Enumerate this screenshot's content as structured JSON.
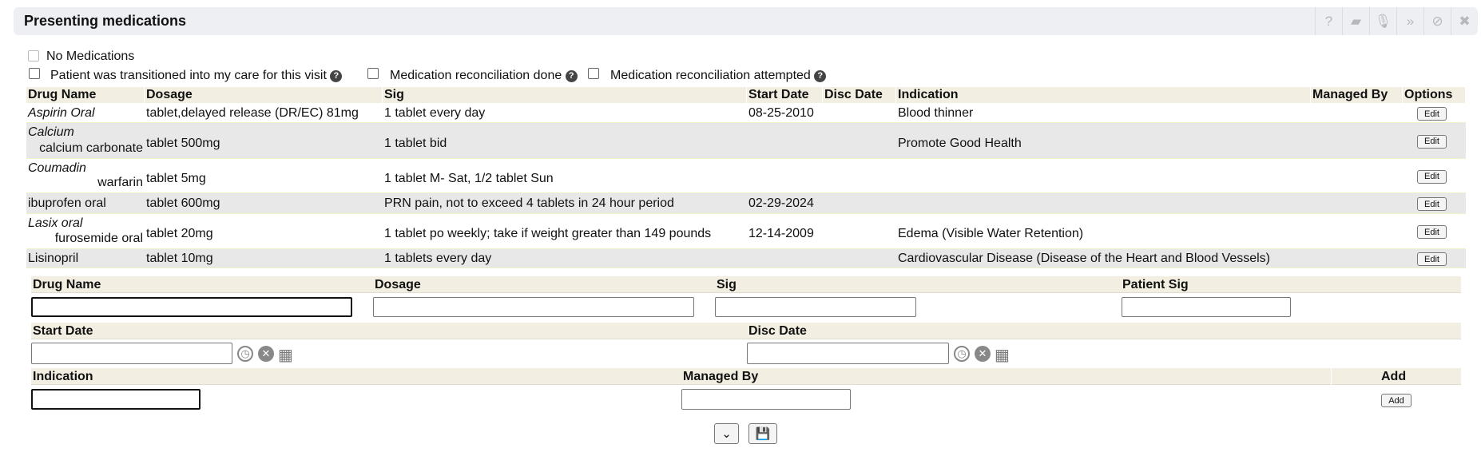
{
  "header": {
    "title": "Presenting medications",
    "tools": [
      {
        "icon": "help-icon",
        "glyph": "?"
      },
      {
        "icon": "book-icon",
        "glyph": "▰"
      },
      {
        "icon": "microphone-icon",
        "glyph": "🎙"
      },
      {
        "icon": "double-chevron-down-icon",
        "glyph": "»"
      },
      {
        "icon": "ban-icon",
        "glyph": "⊘"
      },
      {
        "icon": "close-icon",
        "glyph": "✖"
      }
    ]
  },
  "options": {
    "no_meds": "No Medications",
    "transitioned": "Patient was transitioned into my care for this visit",
    "recon_done": "Medication reconciliation done",
    "recon_attempted": "Medication reconciliation attempted"
  },
  "table": {
    "headers": [
      "Drug Name",
      "Dosage",
      "Sig",
      "Start Date",
      "Disc Date",
      "Indication",
      "Managed By",
      "Options"
    ],
    "rows": [
      {
        "drug": "Aspirin Oral",
        "generic": "",
        "dosage": "tablet,delayed release (DR/EC) 81mg",
        "sig": "1 tablet every day",
        "start": "08-25-2010",
        "disc": "",
        "indication": "Blood thinner",
        "managed": "",
        "edit": "Edit"
      },
      {
        "drug": "Calcium",
        "generic": "calcium carbonate",
        "dosage": "tablet 500mg",
        "sig": "1 tablet bid",
        "start": "",
        "disc": "",
        "indication": "Promote Good Health",
        "managed": "",
        "edit": "Edit"
      },
      {
        "drug": "Coumadin",
        "generic": "warfarin",
        "dosage": "tablet 5mg",
        "sig": "1 tablet M- Sat, 1/2 tablet Sun",
        "start": "",
        "disc": "",
        "indication": "",
        "managed": "",
        "edit": "Edit"
      },
      {
        "drug": "ibuprofen oral",
        "generic": "",
        "dosage": "tablet 600mg",
        "sig": "PRN pain, not to exceed 4 tablets in 24 hour period",
        "start": "02-29-2024",
        "disc": "",
        "indication": "",
        "managed": "",
        "edit": "Edit"
      },
      {
        "drug": "Lasix oral",
        "generic": "furosemide oral",
        "dosage": "tablet 20mg",
        "sig": "1 tablet po weekly; take if weight greater than 149 pounds",
        "start": "12-14-2009",
        "disc": "",
        "indication": "Edema (Visible Water Retention)",
        "managed": "",
        "edit": "Edit"
      },
      {
        "drug": "Lisinopril",
        "generic": "",
        "dosage": "tablet 10mg",
        "sig": "1 tablets every day",
        "start": "",
        "disc": "",
        "indication": "Cardiovascular Disease (Disease of the Heart and Blood Vessels)",
        "managed": "",
        "edit": "Edit"
      }
    ]
  },
  "form": {
    "drug_name": "Drug Name",
    "dosage": "Dosage",
    "sig": "Sig",
    "patient_sig": "Patient Sig",
    "start_date": "Start Date",
    "disc_date": "Disc Date",
    "indication": "Indication",
    "managed_by": "Managed By",
    "add_header": "Add",
    "add_button": "Add"
  }
}
